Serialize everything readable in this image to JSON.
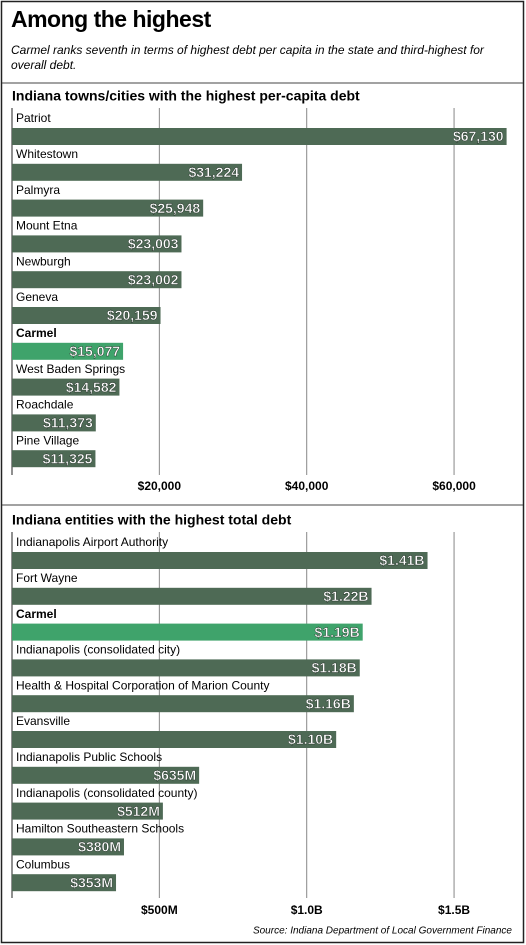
{
  "title": "Among the highest",
  "subtitle": "Carmel ranks seventh in terms of highest debt per capita in the state and third-highest for overall debt.",
  "source": "Source: Indiana Department of Local Government Finance",
  "chart_data": [
    {
      "type": "bar",
      "orientation": "horizontal",
      "title": "Indiana towns/cities with the highest per-capita debt",
      "categories": [
        "Patriot",
        "Whitestown",
        "Palmyra",
        "Mount Etna",
        "Newburgh",
        "Geneva",
        "Carmel",
        "West Baden Springs",
        "Roachdale",
        "Pine Village"
      ],
      "values": [
        67130,
        31224,
        25948,
        23003,
        23002,
        20159,
        15077,
        14582,
        11373,
        11325
      ],
      "value_labels": [
        "$67,130",
        "$31,224",
        "$25,948",
        "$23,003",
        "$23,002",
        "$20,159",
        "$15,077",
        "$14,582",
        "$11,373",
        "$11,325"
      ],
      "colors": [
        "#4e6a55",
        "#4e6a55",
        "#4e6a55",
        "#4e6a55",
        "#4e6a55",
        "#4e6a55",
        "#3fa36b",
        "#4e6a55",
        "#4e6a55",
        "#4e6a55"
      ],
      "xlim": [
        0,
        68000
      ],
      "xticks": [
        {
          "value": 20000,
          "label": "$20,000"
        },
        {
          "value": 40000,
          "label": "$40,000"
        },
        {
          "value": 60000,
          "label": "$60,000"
        }
      ],
      "grid": true
    },
    {
      "type": "bar",
      "orientation": "horizontal",
      "title": "Indiana entities with the highest total debt",
      "categories": [
        "Indianapolis Airport Authority",
        "Fort Wayne",
        "Carmel",
        "Indianapolis (consolidated city)",
        "Health & Hospital Corporation of Marion County",
        "Evansville",
        "Indianapolis Public Schools",
        "Indianapolis (consolidated county)",
        "Hamilton Southeastern Schools",
        "Columbus"
      ],
      "values": [
        1410,
        1220,
        1190,
        1180,
        1160,
        1100,
        635,
        512,
        380,
        353
      ],
      "value_labels": [
        "$1.41B",
        "$1.22B",
        "$1.19B",
        "$1.18B",
        "$1.16B",
        "$1.10B",
        "$635M",
        "$512M",
        "$380M",
        "$353M"
      ],
      "colors": [
        "#4e6a55",
        "#4e6a55",
        "#3fa36b",
        "#4e6a55",
        "#4e6a55",
        "#4e6a55",
        "#4e6a55",
        "#4e6a55",
        "#4e6a55",
        "#4e6a55"
      ],
      "xlim": [
        0,
        1700
      ],
      "xticks": [
        {
          "value": 500,
          "label": "$500M"
        },
        {
          "value": 1000,
          "label": "$1.0B"
        },
        {
          "value": 1500,
          "label": "$1.5B"
        }
      ],
      "grid": true
    }
  ]
}
